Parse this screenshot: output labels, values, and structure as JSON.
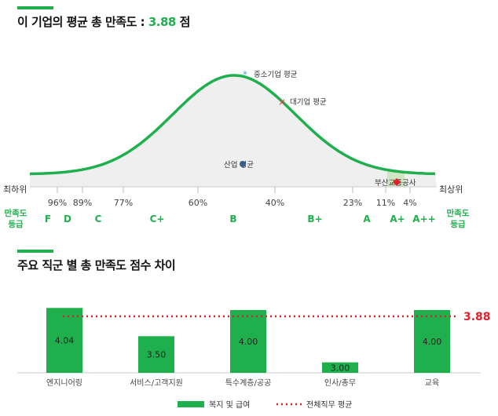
{
  "header": {
    "title_prefix": "이 기업의 평균 총 만족도 : ",
    "score": "3.88",
    "title_suffix": " 점"
  },
  "distribution": {
    "markers": [
      {
        "label": "중소기업 평균",
        "symbol": "*",
        "color": "#4aa3d8"
      },
      {
        "label": "대기업 평균",
        "symbol": "×",
        "color": "#e0404a"
      },
      {
        "label": "산업 평균",
        "symbol": "●",
        "color": "#3a5a8c"
      },
      {
        "label": "부산교통공사",
        "symbol": "◆",
        "color": "#e0202a"
      }
    ],
    "percentiles": [
      "96%",
      "89%",
      "77%",
      "60%",
      "40%",
      "23%",
      "11%",
      "4%"
    ],
    "grades": [
      "F",
      "D",
      "C",
      "C+",
      "B",
      "B+",
      "A",
      "A+",
      "A++"
    ],
    "left_edge": "최하위",
    "right_edge": "최상위",
    "side_label_line1": "만족도",
    "side_label_line2": "등급",
    "curve_color": "#1fb04d"
  },
  "section2": {
    "title": "주요 직군 별 총 만족도 점수 차이"
  },
  "chart_data": {
    "type": "bar",
    "categories": [
      "엔지니어링",
      "서비스/고객지원",
      "특수계층/공공",
      "인사/총무",
      "교육"
    ],
    "series": [
      {
        "name": "복지 및 급여",
        "values": [
          4.04,
          3.5,
          4.0,
          3.0,
          4.0
        ],
        "color": "#1fb04d"
      }
    ],
    "reference_line": {
      "name": "전체직무 평균",
      "value": 3.88,
      "color": "#e0202a",
      "style": "dotted"
    },
    "value_labels": [
      "4.04",
      "3.50",
      "4.00",
      "3.00",
      "4.00"
    ],
    "reference_label": "3.88",
    "ylim": [
      0,
      4.3
    ],
    "legend_position": "bottom",
    "grid": false
  }
}
